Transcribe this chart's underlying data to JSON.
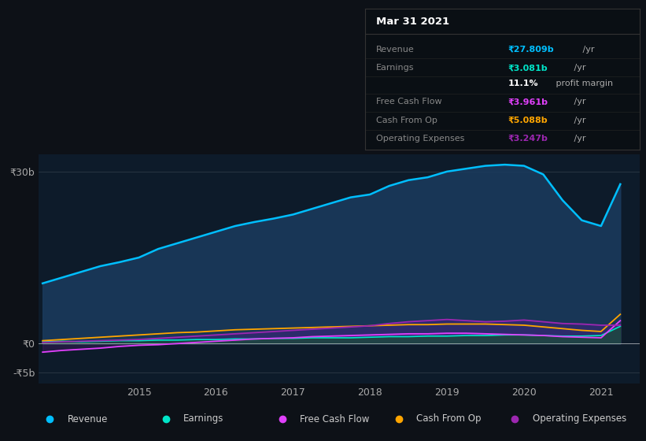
{
  "background_color": "#0d1117",
  "plot_bg_color": "#0d1b2a",
  "title": "Mar 31 2021",
  "yticks_labels": [
    "₹30b",
    "₹0",
    "-₹5b"
  ],
  "yticks_values": [
    30,
    0,
    -5
  ],
  "xticks": [
    2015,
    2016,
    2017,
    2018,
    2019,
    2020,
    2021
  ],
  "ylim": [
    -7,
    33
  ],
  "xlim_start": 2013.7,
  "xlim_end": 2021.5,
  "revenue_color": "#00bfff",
  "revenue_fill": "#1a3a5c",
  "earnings_color": "#00e5c8",
  "earnings_fill": "#1a4a3a",
  "free_cash_flow_color": "#e040fb",
  "cash_from_op_color": "#ffa500",
  "operating_expenses_color": "#9c27b0",
  "legend": [
    {
      "label": "Revenue",
      "color": "#00bfff"
    },
    {
      "label": "Earnings",
      "color": "#00e5c8"
    },
    {
      "label": "Free Cash Flow",
      "color": "#e040fb"
    },
    {
      "label": "Cash From Op",
      "color": "#ffa500"
    },
    {
      "label": "Operating Expenses",
      "color": "#9c27b0"
    }
  ],
  "tooltip_rows": [
    {
      "label": "Revenue",
      "value": "₹27.809b",
      "unit": " /yr",
      "color": "#00bfff"
    },
    {
      "label": "Earnings",
      "value": "₹3.081b",
      "unit": " /yr",
      "color": "#00e5c8"
    },
    {
      "label": "",
      "value": "11.1%",
      "unit": " profit margin",
      "color": "#ffffff"
    },
    {
      "label": "Free Cash Flow",
      "value": "₹3.961b",
      "unit": " /yr",
      "color": "#e040fb"
    },
    {
      "label": "Cash From Op",
      "value": "₹5.088b",
      "unit": " /yr",
      "color": "#ffa500"
    },
    {
      "label": "Operating Expenses",
      "value": "₹3.247b",
      "unit": " /yr",
      "color": "#9c27b0"
    }
  ],
  "revenue_x": [
    2013.75,
    2014.0,
    2014.25,
    2014.5,
    2014.75,
    2015.0,
    2015.25,
    2015.5,
    2015.75,
    2016.0,
    2016.25,
    2016.5,
    2016.75,
    2017.0,
    2017.25,
    2017.5,
    2017.75,
    2018.0,
    2018.25,
    2018.5,
    2018.75,
    2019.0,
    2019.25,
    2019.5,
    2019.75,
    2020.0,
    2020.25,
    2020.5,
    2020.75,
    2021.0,
    2021.25
  ],
  "revenue_y": [
    10.5,
    11.5,
    12.5,
    13.5,
    14.2,
    15.0,
    16.5,
    17.5,
    18.5,
    19.5,
    20.5,
    21.2,
    21.8,
    22.5,
    23.5,
    24.5,
    25.5,
    26.0,
    27.5,
    28.5,
    29.0,
    30.0,
    30.5,
    31.0,
    31.2,
    31.0,
    29.5,
    25.0,
    21.5,
    20.5,
    27.8
  ],
  "earnings_x": [
    2013.75,
    2014.0,
    2014.25,
    2014.5,
    2014.75,
    2015.0,
    2015.25,
    2015.5,
    2015.75,
    2016.0,
    2016.25,
    2016.5,
    2016.75,
    2017.0,
    2017.25,
    2017.5,
    2017.75,
    2018.0,
    2018.25,
    2018.5,
    2018.75,
    2019.0,
    2019.25,
    2019.5,
    2019.75,
    2020.0,
    2020.25,
    2020.5,
    2020.75,
    2021.0,
    2021.25
  ],
  "earnings_y": [
    0.3,
    0.4,
    0.3,
    0.4,
    0.5,
    0.5,
    0.6,
    0.6,
    0.7,
    0.7,
    0.8,
    0.8,
    0.9,
    0.9,
    1.0,
    1.0,
    1.0,
    1.1,
    1.2,
    1.2,
    1.3,
    1.3,
    1.4,
    1.4,
    1.5,
    1.5,
    1.4,
    1.3,
    1.3,
    1.4,
    3.0
  ],
  "free_cash_flow_x": [
    2013.75,
    2014.0,
    2014.25,
    2014.5,
    2014.75,
    2015.0,
    2015.25,
    2015.5,
    2015.75,
    2016.0,
    2016.25,
    2016.5,
    2016.75,
    2017.0,
    2017.25,
    2017.5,
    2017.75,
    2018.0,
    2018.25,
    2018.5,
    2018.75,
    2019.0,
    2019.25,
    2019.5,
    2019.75,
    2020.0,
    2020.25,
    2020.5,
    2020.75,
    2021.0,
    2021.25
  ],
  "free_cash_flow_y": [
    -1.5,
    -1.2,
    -1.0,
    -0.8,
    -0.5,
    -0.3,
    -0.2,
    0.0,
    0.2,
    0.4,
    0.6,
    0.8,
    0.9,
    1.0,
    1.2,
    1.3,
    1.4,
    1.5,
    1.6,
    1.7,
    1.7,
    1.8,
    1.8,
    1.7,
    1.6,
    1.5,
    1.4,
    1.2,
    1.1,
    1.0,
    4.0
  ],
  "cash_from_op_x": [
    2013.75,
    2014.0,
    2014.25,
    2014.5,
    2014.75,
    2015.0,
    2015.25,
    2015.5,
    2015.75,
    2016.0,
    2016.25,
    2016.5,
    2016.75,
    2017.0,
    2017.25,
    2017.5,
    2017.75,
    2018.0,
    2018.25,
    2018.5,
    2018.75,
    2019.0,
    2019.25,
    2019.5,
    2019.75,
    2020.0,
    2020.25,
    2020.5,
    2020.75,
    2021.0,
    2021.25
  ],
  "cash_from_op_y": [
    0.5,
    0.7,
    0.9,
    1.1,
    1.3,
    1.5,
    1.7,
    1.9,
    2.0,
    2.2,
    2.4,
    2.5,
    2.6,
    2.7,
    2.8,
    2.9,
    3.0,
    3.1,
    3.2,
    3.3,
    3.3,
    3.4,
    3.4,
    3.4,
    3.3,
    3.2,
    2.9,
    2.6,
    2.3,
    2.1,
    5.1
  ],
  "op_expenses_x": [
    2013.75,
    2014.0,
    2014.25,
    2014.5,
    2014.75,
    2015.0,
    2015.25,
    2015.5,
    2015.75,
    2016.0,
    2016.25,
    2016.5,
    2016.75,
    2017.0,
    2017.25,
    2017.5,
    2017.75,
    2018.0,
    2018.25,
    2018.5,
    2018.75,
    2019.0,
    2019.25,
    2019.5,
    2019.75,
    2020.0,
    2020.25,
    2020.5,
    2020.75,
    2021.0,
    2021.25
  ],
  "op_expenses_y": [
    0.2,
    0.3,
    0.4,
    0.5,
    0.6,
    0.7,
    0.9,
    1.1,
    1.3,
    1.5,
    1.7,
    1.9,
    2.1,
    2.3,
    2.5,
    2.7,
    2.9,
    3.1,
    3.5,
    3.8,
    4.0,
    4.2,
    4.0,
    3.8,
    3.9,
    4.1,
    3.8,
    3.5,
    3.4,
    3.2,
    3.2
  ]
}
